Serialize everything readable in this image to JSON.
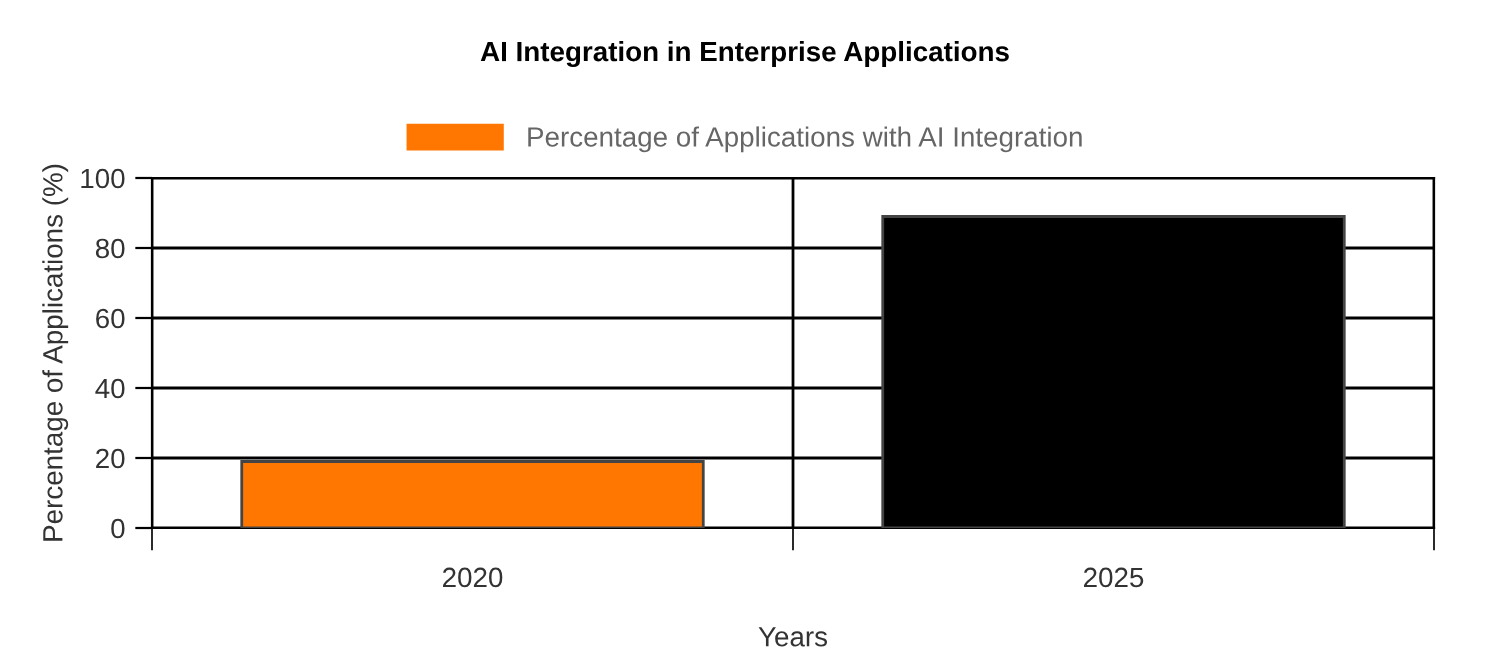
{
  "chart_data": {
    "type": "bar",
    "title": "AI Integration in Enterprise Applications",
    "xlabel": "Years",
    "ylabel": "Percentage of Applications (%)",
    "categories": [
      "2020",
      "2025"
    ],
    "series": [
      {
        "name": "Percentage of Applications with AI Integration",
        "color": "#ff7700",
        "colors": [
          "#ff7700",
          "#000000"
        ],
        "values": [
          19,
          89
        ]
      }
    ],
    "ylim": [
      0,
      100
    ],
    "yticks": [
      0,
      20,
      40,
      60,
      80,
      100
    ],
    "grid": true,
    "legend": "top"
  }
}
